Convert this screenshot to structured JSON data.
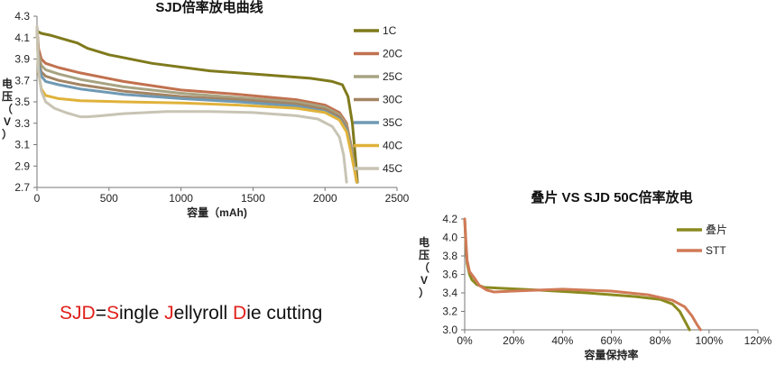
{
  "caption": {
    "segments": [
      {
        "text": "SJD",
        "highlight": true
      },
      {
        "text": "=",
        "highlight": false
      },
      {
        "text": "S",
        "highlight": true
      },
      {
        "text": "ingle ",
        "highlight": false
      },
      {
        "text": "J",
        "highlight": true
      },
      {
        "text": "ellyroll ",
        "highlight": false
      },
      {
        "text": "D",
        "highlight": true
      },
      {
        "text": "ie cutting",
        "highlight": false
      }
    ]
  },
  "chart_data": [
    {
      "type": "line",
      "title": "SJD倍率放电曲线",
      "xlabel": "容量（mAh)",
      "ylabel": "电压（V）",
      "xlim": [
        0,
        2500
      ],
      "ylim": [
        2.7,
        4.3
      ],
      "xticks": [
        "0",
        "500",
        "1000",
        "1500",
        "2000",
        "2500"
      ],
      "yticks": [
        "2.7",
        "2.9",
        "3.1",
        "3.3",
        "3.5",
        "3.7",
        "3.9",
        "4.1",
        "4.3"
      ],
      "grid": false,
      "legend": "right",
      "series": [
        {
          "name": "1C",
          "color": "#7f7a1c",
          "x": [
            0,
            30,
            100,
            200,
            280,
            350,
            500,
            800,
            1200,
            1600,
            1900,
            2050,
            2120,
            2160,
            2190,
            2210,
            2225
          ],
          "y": [
            4.16,
            4.14,
            4.12,
            4.08,
            4.05,
            4.0,
            3.94,
            3.86,
            3.79,
            3.75,
            3.72,
            3.69,
            3.66,
            3.55,
            3.3,
            3.0,
            2.75
          ]
        },
        {
          "name": "20C",
          "color": "#c1714f",
          "x": [
            0,
            10,
            30,
            60,
            150,
            300,
            600,
            1000,
            1400,
            1800,
            2000,
            2100,
            2150,
            2180,
            2205,
            2220
          ],
          "y": [
            4.2,
            4.0,
            3.9,
            3.86,
            3.82,
            3.77,
            3.69,
            3.61,
            3.57,
            3.52,
            3.47,
            3.4,
            3.3,
            3.1,
            2.9,
            2.75
          ]
        },
        {
          "name": "25C",
          "color": "#a7a382",
          "x": [
            0,
            10,
            30,
            60,
            150,
            300,
            600,
            1000,
            1400,
            1800,
            2000,
            2100,
            2150,
            2180,
            2205,
            2220
          ],
          "y": [
            4.2,
            3.95,
            3.84,
            3.8,
            3.76,
            3.71,
            3.64,
            3.58,
            3.54,
            3.5,
            3.45,
            3.38,
            3.28,
            3.08,
            2.9,
            2.75
          ]
        },
        {
          "name": "30C",
          "color": "#a38463",
          "x": [
            0,
            10,
            30,
            60,
            150,
            300,
            600,
            1000,
            1400,
            1800,
            2000,
            2100,
            2150,
            2180,
            2205,
            2220
          ],
          "y": [
            4.2,
            3.88,
            3.78,
            3.74,
            3.7,
            3.66,
            3.6,
            3.55,
            3.52,
            3.48,
            3.43,
            3.36,
            3.26,
            3.06,
            2.88,
            2.75
          ]
        },
        {
          "name": "35C",
          "color": "#6f99b4",
          "x": [
            0,
            10,
            30,
            60,
            150,
            300,
            600,
            1000,
            1400,
            1800,
            2000,
            2100,
            2150,
            2180,
            2205,
            2220
          ],
          "y": [
            4.2,
            3.85,
            3.74,
            3.69,
            3.66,
            3.62,
            3.57,
            3.53,
            3.5,
            3.46,
            3.41,
            3.34,
            3.24,
            3.05,
            2.87,
            2.75
          ]
        },
        {
          "name": "40C",
          "color": "#e0b23a",
          "x": [
            0,
            10,
            30,
            60,
            150,
            300,
            600,
            1000,
            1400,
            1800,
            2000,
            2100,
            2150,
            2180,
            2205,
            2220
          ],
          "y": [
            4.2,
            3.78,
            3.62,
            3.56,
            3.53,
            3.51,
            3.5,
            3.49,
            3.47,
            3.44,
            3.4,
            3.33,
            3.22,
            3.03,
            2.86,
            2.75
          ]
        },
        {
          "name": "45C",
          "color": "#c8c4b4",
          "x": [
            0,
            10,
            30,
            60,
            120,
            200,
            300,
            350,
            450,
            600,
            900,
            1200,
            1500,
            1800,
            1950,
            2050,
            2100,
            2130,
            2150
          ],
          "y": [
            4.2,
            3.8,
            3.6,
            3.5,
            3.44,
            3.4,
            3.36,
            3.36,
            3.37,
            3.39,
            3.41,
            3.41,
            3.4,
            3.37,
            3.34,
            3.27,
            3.17,
            3.0,
            2.75
          ]
        }
      ]
    },
    {
      "type": "line",
      "title": "叠片 VS SJD 50C倍率放电",
      "xlabel": "容量保持率",
      "ylabel": "电压（V）",
      "xlim": [
        0,
        120
      ],
      "ylim": [
        3.0,
        4.2
      ],
      "xticks": [
        "0%",
        "20%",
        "40%",
        "60%",
        "80%",
        "100%",
        "120%"
      ],
      "yticks": [
        "3.0",
        "3.2",
        "3.4",
        "3.6",
        "3.8",
        "4.0",
        "4.2"
      ],
      "grid": false,
      "legend": "right",
      "series": [
        {
          "name": "叠片",
          "color": "#8a8a1f",
          "x": [
            0,
            0.5,
            1,
            2,
            3,
            5,
            8,
            15,
            30,
            50,
            70,
            80,
            85,
            88,
            90,
            92
          ],
          "y": [
            4.2,
            3.9,
            3.72,
            3.6,
            3.54,
            3.49,
            3.46,
            3.45,
            3.43,
            3.4,
            3.36,
            3.33,
            3.28,
            3.2,
            3.1,
            3.0
          ]
        },
        {
          "name": "STT",
          "color": "#d07a57",
          "x": [
            0,
            0.5,
            1,
            2,
            4,
            6,
            9,
            12,
            20,
            40,
            60,
            75,
            85,
            90,
            93,
            95,
            96.5
          ],
          "y": [
            4.2,
            3.95,
            3.75,
            3.63,
            3.56,
            3.48,
            3.43,
            3.41,
            3.42,
            3.44,
            3.42,
            3.38,
            3.32,
            3.25,
            3.15,
            3.06,
            3.0
          ]
        }
      ]
    }
  ]
}
